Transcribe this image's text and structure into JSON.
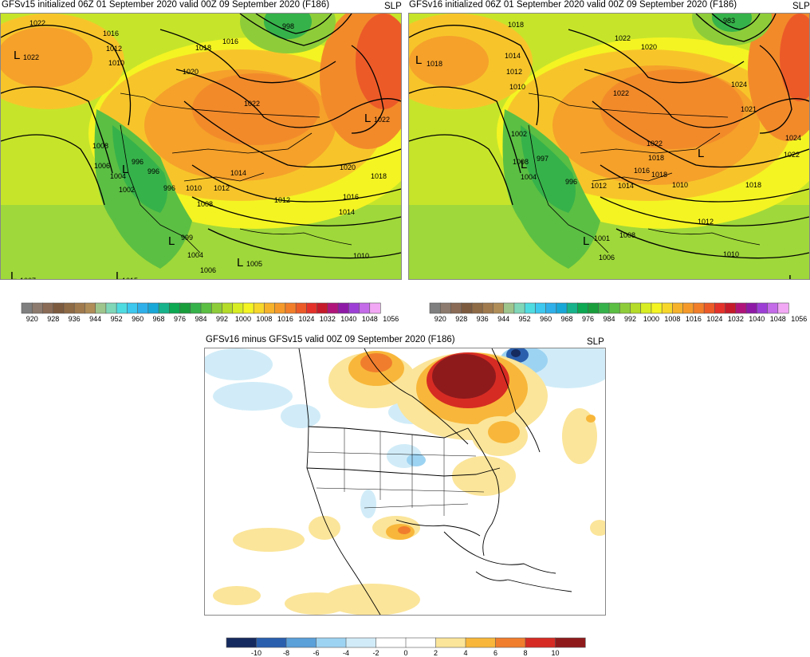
{
  "panels": [
    {
      "id": "gfsv15",
      "title": "GFSv15 initialized 06Z 01 September 2020 valid 00Z 09 September 2020 (F186)",
      "variable": "SLP",
      "contour_labels": [
        "1022",
        "1022",
        "1016",
        "1012",
        "1010",
        "1020",
        "1016",
        "1018",
        "998",
        "1022",
        "1022",
        "1008",
        "1006",
        "996",
        "996",
        "1004",
        "1002",
        "996",
        "1010",
        "1012",
        "1008",
        "1014",
        "1020",
        "1018",
        "1016",
        "1014",
        "1012",
        "999",
        "1004",
        "1005",
        "1006",
        "1010",
        "1007",
        "1015"
      ],
      "low_markers": [
        "L",
        "L",
        "L",
        "L",
        "L",
        "L",
        "L"
      ]
    },
    {
      "id": "gfsv16",
      "title": "GFSv16 initialized 06Z 01 September 2020 valid 00Z 09 September 2020 (F186)",
      "variable": "SLP",
      "contour_labels": [
        "1018",
        "1018",
        "1014",
        "1012",
        "1010",
        "1022",
        "1020",
        "1022",
        "983",
        "1024",
        "1021",
        "1022",
        "1024",
        "1022",
        "1018",
        "1002",
        "1008",
        "997",
        "996",
        "1004",
        "1012",
        "1014",
        "1016",
        "1018",
        "1010",
        "1018",
        "1012",
        "1001",
        "1008",
        "1006",
        "1010"
      ],
      "low_markers": [
        "L",
        "L",
        "L",
        "L",
        "L"
      ]
    }
  ],
  "slp_colorbar": {
    "labels": [
      "920",
      "928",
      "936",
      "944",
      "952",
      "960",
      "968",
      "976",
      "984",
      "992",
      "1000",
      "1008",
      "1016",
      "1024",
      "1032",
      "1040",
      "1048",
      "1056"
    ],
    "colors": [
      "#7f7f7f",
      "#8c7b6e",
      "#8a6b55",
      "#7c5a3e",
      "#8e6a45",
      "#a07a4d",
      "#b08d57",
      "#9ec58c",
      "#7fd7b8",
      "#4fdce1",
      "#3cc8ef",
      "#2fb0ea",
      "#18a8d8",
      "#17b38a",
      "#0ca852",
      "#199e3c",
      "#36b24a",
      "#5bbf43",
      "#8ecd39",
      "#b4dc28",
      "#d8ee22",
      "#f4f422",
      "#f7d72a",
      "#f6b22a",
      "#f59a2a",
      "#f27e2a",
      "#ec5a28",
      "#e4322a",
      "#c61a2a",
      "#b0147a",
      "#8e19a7",
      "#9d3fd6",
      "#c36be8",
      "#f2a8f4"
    ]
  },
  "diff_panel": {
    "title": "GFSv16 minus GFSv15 valid 00Z 09 September 2020 (F186)",
    "variable": "SLP"
  },
  "diff_colorbar": {
    "labels": [
      "-10",
      "-8",
      "-6",
      "-4",
      "-2",
      "0",
      "2",
      "4",
      "6",
      "8",
      "10"
    ],
    "colors": [
      "#152a5e",
      "#2a5fae",
      "#5aa0d9",
      "#9dd3f2",
      "#d1ecf8",
      "#ffffff",
      "#ffffff",
      "#fbe59a",
      "#f8b73a",
      "#f07d2d",
      "#d62b23",
      "#8e1a1c"
    ]
  }
}
